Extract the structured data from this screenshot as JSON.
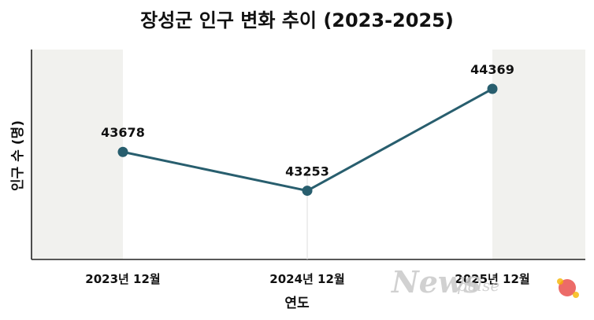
{
  "chart_data": {
    "type": "line",
    "title": "장성군 인구 변화 추이 (2023-2025)",
    "xlabel": "연도",
    "ylabel": "인구 수 (명)",
    "categories": [
      "2023년 12월",
      "2024년 12월",
      "2025년 12월"
    ],
    "values": [
      43678,
      43253,
      44369
    ],
    "ylim": [
      42500,
      44800
    ],
    "grid": false,
    "data_labels": true,
    "colors": {
      "line": "#285e6e",
      "marker": "#285e6e",
      "shade": "#f1f1ee"
    }
  },
  "watermark": {
    "brand": "Newspulse",
    "brand_small": "NEWSPULSE"
  }
}
